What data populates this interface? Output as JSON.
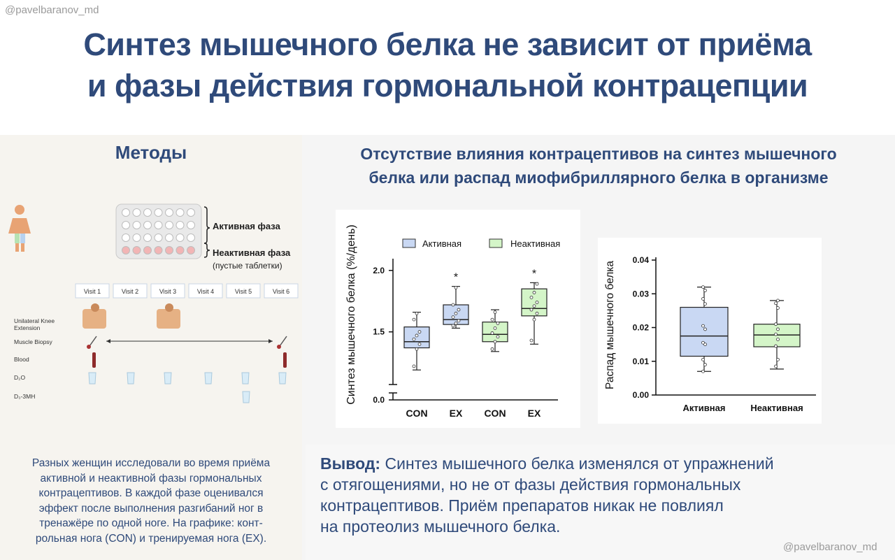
{
  "header": {
    "handle": "@pavelbaranov_md",
    "title_line1": "Синтез мышечного белка не зависит от приёма",
    "title_line2": "и фазы действия гормональной контрацепции"
  },
  "methods": {
    "heading": "Методы",
    "blister_active_label": "Активная фаза",
    "blister_inactive_label": "Неактивная фаза",
    "blister_inactive_note": "(пустые таблетки)",
    "visits": [
      "Visit 1",
      "Visit 2",
      "Visit 3",
      "Visit 4",
      "Visit 5",
      "Visit 6"
    ],
    "rows": {
      "knee": "Unilateral Knee",
      "knee2": "Extension",
      "biopsy": "Muscle Biopsy",
      "blood": "Blood",
      "d2o": "D₂O",
      "d3": "D₃-3MH"
    },
    "description": [
      "Разных женщин исследовали во время приёма",
      "активной и неактивной фазы гормональных",
      "контрацептивов. В каждой фазе оценивался",
      "эффект после выполнения разгибаний ног в",
      "тренажёре по одной ноге. На графике: конт-",
      "рольная нога (CON) и тренируемая нога (EX)."
    ]
  },
  "chart_section": {
    "heading_line1": "Отсутствие влияния контрацептивов на синтез мышечного",
    "heading_line2": "белка или распад миофибриллярного белка в организме"
  },
  "colors": {
    "active_fill": "#c9d8f3",
    "inactive_fill": "#d4f5c8",
    "title": "#2f4a7a"
  },
  "chart_data": [
    {
      "type": "box",
      "ylabel": "Синтез мышечного белка (%/день)",
      "yticks": [
        "0.0",
        "1.5",
        "2.0"
      ],
      "axis_break": true,
      "ylim": [
        1.1,
        2.05
      ],
      "categories": [
        "CON",
        "EX",
        "CON",
        "EX"
      ],
      "legend": [
        "Активная",
        "Неактивная"
      ],
      "legend_position": "top",
      "boxes": [
        {
          "group": "Активная",
          "category": "CON",
          "min": 1.19,
          "q1": 1.37,
          "median": 1.42,
          "q3": 1.54,
          "max": 1.66,
          "points": [
            1.22,
            1.36,
            1.4,
            1.44,
            1.47,
            1.5,
            1.6,
            1.65
          ]
        },
        {
          "group": "Активная",
          "category": "EX",
          "min": 1.53,
          "q1": 1.56,
          "median": 1.6,
          "q3": 1.72,
          "max": 1.87,
          "points": [
            1.55,
            1.57,
            1.59,
            1.62,
            1.65,
            1.68,
            1.72,
            1.86
          ]
        },
        {
          "group": "Неактивная",
          "category": "CON",
          "min": 1.34,
          "q1": 1.42,
          "median": 1.48,
          "q3": 1.58,
          "max": 1.68,
          "points": [
            1.36,
            1.42,
            1.46,
            1.49,
            1.53,
            1.57,
            1.6,
            1.66
          ]
        },
        {
          "group": "Неактивная",
          "category": "EX",
          "min": 1.4,
          "q1": 1.63,
          "median": 1.69,
          "q3": 1.85,
          "max": 1.9,
          "points": [
            1.43,
            1.6,
            1.65,
            1.68,
            1.71,
            1.74,
            1.78,
            1.82,
            1.89
          ]
        }
      ],
      "significance": [
        "",
        "*",
        "",
        "*"
      ]
    },
    {
      "type": "box",
      "ylabel": "Распад мышечного белка",
      "yticks": [
        "0.00",
        "0.01",
        "0.02",
        "0.03",
        "0.04"
      ],
      "ylim": [
        0,
        0.04
      ],
      "categories": [
        "Активная",
        "Неактивная"
      ],
      "boxes": [
        {
          "group": "Активная",
          "category": "Активная",
          "min": 0.007,
          "q1": 0.0115,
          "median": 0.0175,
          "q3": 0.026,
          "max": 0.032,
          "points": [
            0.007,
            0.009,
            0.0105,
            0.015,
            0.0155,
            0.0195,
            0.0205,
            0.027,
            0.0285,
            0.031,
            0.032
          ]
        },
        {
          "group": "Неактивная",
          "category": "Неактивная",
          "min": 0.0077,
          "q1": 0.0143,
          "median": 0.0178,
          "q3": 0.021,
          "max": 0.028,
          "points": [
            0.0085,
            0.0105,
            0.0145,
            0.0165,
            0.018,
            0.0195,
            0.021,
            0.0258,
            0.0272,
            0.028
          ]
        }
      ]
    }
  ],
  "conclusion": {
    "lead": "Вывод:",
    "line1": " Синтез мышечного белка изменялся от упражнений",
    "line2": "с отягощениями, но не от фазы действия гормональных",
    "line3": "контрацептивов. Приём препаратов никак не повлиял",
    "line4": "на протеолиз мышечного белка."
  },
  "footer": {
    "handle": "@pavelbaranov_md"
  }
}
